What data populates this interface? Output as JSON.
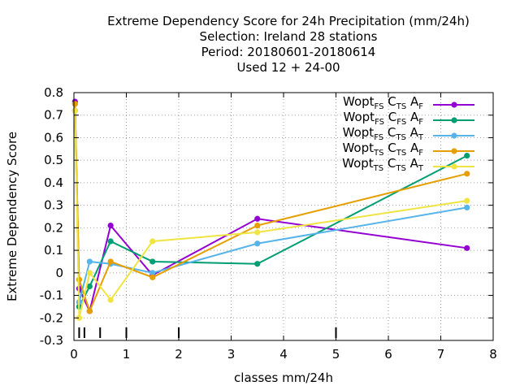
{
  "chart_data": {
    "type": "line",
    "title_lines": [
      "Extreme Dependency Score  for 24h Precipitation (mm/24h)",
      "Selection: Ireland      28 stations",
      "Period: 20180601-20180614",
      "Used  12 + 24-00"
    ],
    "xlabel": "classes mm/24h",
    "ylabel": "Extreme Dependency Score",
    "xlim": [
      0,
      8
    ],
    "ylim": [
      -0.3,
      0.8
    ],
    "xticks": [
      "0",
      "1",
      "2",
      "3",
      "4",
      "5",
      "6",
      "7",
      "8"
    ],
    "yticks": [
      "-0.3",
      "-0.2",
      "-0.1",
      "0",
      "0.1",
      "0.2",
      "0.3",
      "0.4",
      "0.5",
      "0.6",
      "0.7",
      "0.8"
    ],
    "class_markers": [
      0.1,
      0.2,
      0.5,
      1,
      2,
      5
    ],
    "grid": "dotted",
    "legend_position": "top-right",
    "series": [
      {
        "name": [
          "Wopt",
          "FS",
          "C",
          "TS",
          "A",
          "F"
        ],
        "color": "#9400d3",
        "marker": "filled-circle",
        "points": [
          [
            0.02,
            0.76
          ],
          [
            0.1,
            -0.07
          ],
          [
            0.3,
            -0.17
          ],
          [
            0.7,
            0.21
          ],
          [
            1.5,
            -0.01
          ],
          [
            3.5,
            0.24
          ],
          [
            7.5,
            0.11
          ]
        ]
      },
      {
        "name": [
          "Wopt",
          "FS",
          "C",
          "FS",
          "A",
          "F"
        ],
        "color": "#009e73",
        "marker": "filled-circle",
        "points": [
          [
            0.02,
            0.72
          ],
          [
            0.1,
            -0.15
          ],
          [
            0.3,
            -0.06
          ],
          [
            0.7,
            0.14
          ],
          [
            1.5,
            0.05
          ],
          [
            3.5,
            0.04
          ],
          [
            7.5,
            0.52
          ]
        ]
      },
      {
        "name": [
          "Wopt",
          "FS",
          "C",
          "TS",
          "A",
          "T"
        ],
        "color": "#56b4e9",
        "marker": "filled-circle",
        "points": [
          [
            0.02,
            0.75
          ],
          [
            0.1,
            -0.13
          ],
          [
            0.3,
            0.05
          ],
          [
            0.7,
            0.04
          ],
          [
            1.5,
            0.0
          ],
          [
            3.5,
            0.13
          ],
          [
            7.5,
            0.29
          ]
        ]
      },
      {
        "name": [
          "Wopt",
          "TS",
          "C",
          "TS",
          "A",
          "F"
        ],
        "color": "#e69f00",
        "marker": "filled-circle",
        "points": [
          [
            0.02,
            0.75
          ],
          [
            0.1,
            -0.03
          ],
          [
            0.3,
            -0.17
          ],
          [
            0.7,
            0.05
          ],
          [
            1.5,
            -0.02
          ],
          [
            3.5,
            0.21
          ],
          [
            7.5,
            0.44
          ]
        ]
      },
      {
        "name": [
          "Wopt",
          "TS",
          "C",
          "TS",
          "A",
          "T"
        ],
        "color": "#f0e442",
        "marker": "filled-circle",
        "points": [
          [
            0.02,
            0.72
          ],
          [
            0.1,
            -0.2
          ],
          [
            0.3,
            0.0
          ],
          [
            0.7,
            -0.12
          ],
          [
            1.5,
            0.14
          ],
          [
            3.5,
            0.18
          ],
          [
            7.5,
            0.32
          ]
        ]
      }
    ]
  }
}
